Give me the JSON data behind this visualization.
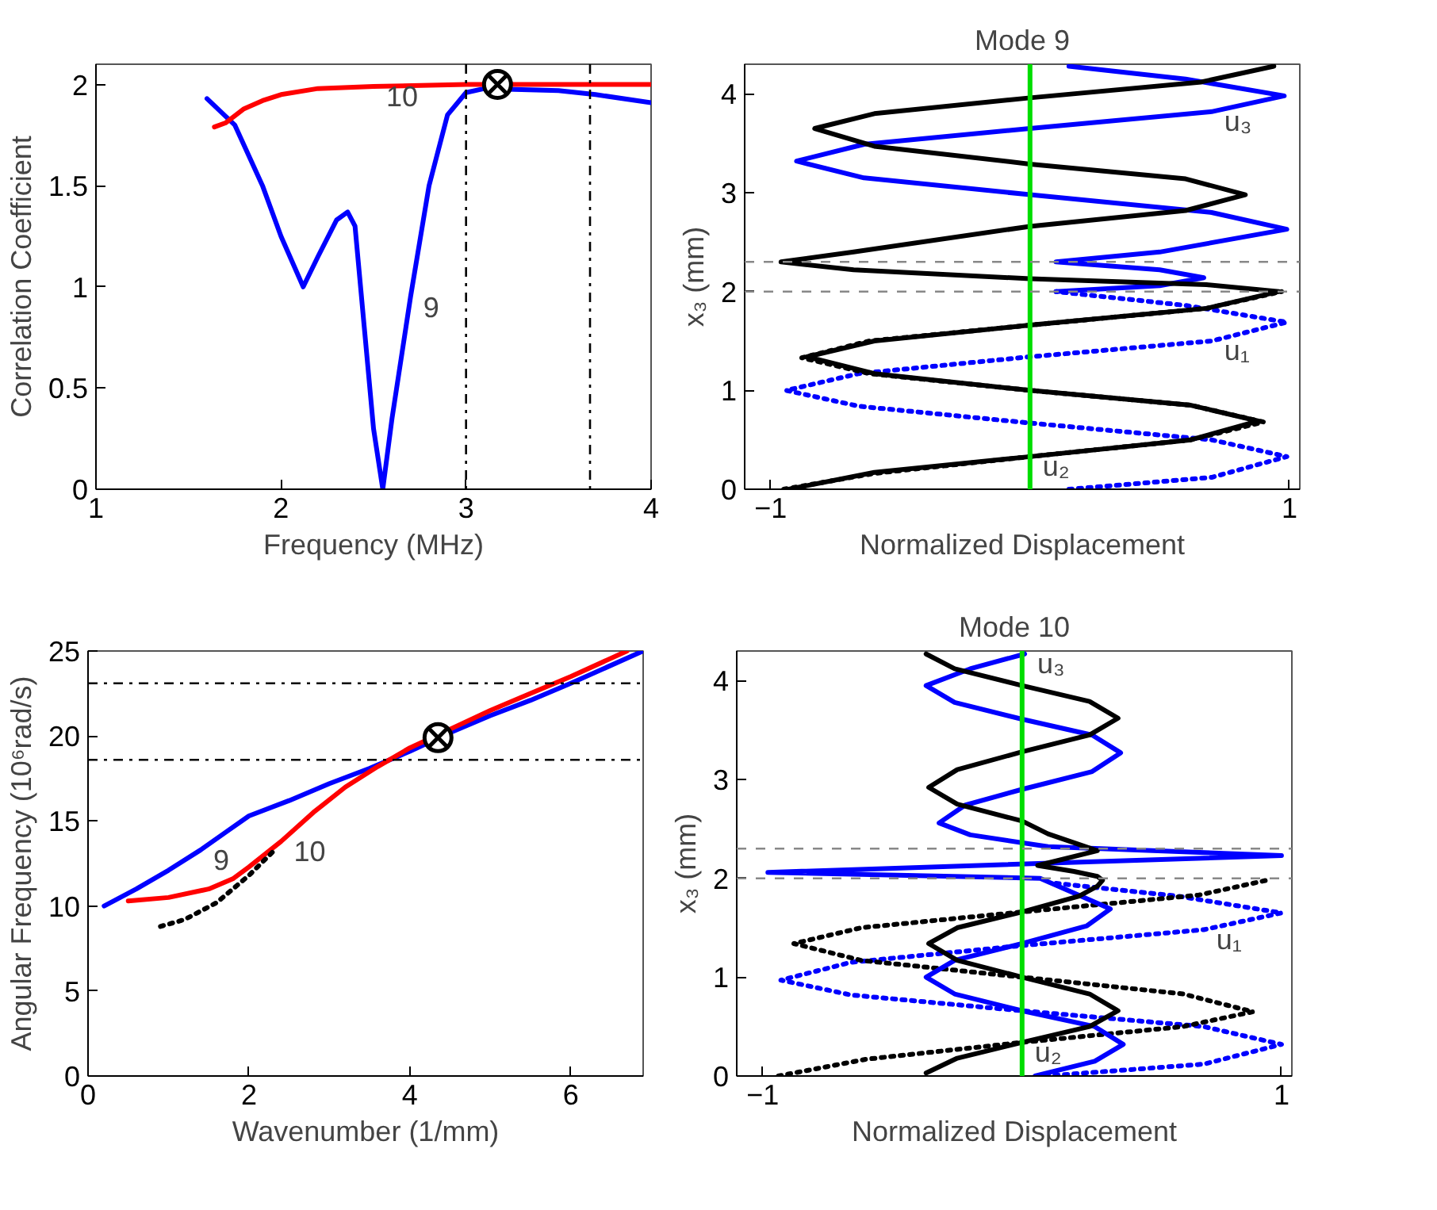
{
  "chart_data": [
    {
      "type": "line",
      "xlabel": "Frequency (MHz)",
      "ylabel": "Correlation Coefficient",
      "xlim": [
        1,
        4
      ],
      "ylim": [
        0,
        2.1
      ],
      "xticks": [
        1,
        2,
        3,
        4
      ],
      "yticks": [
        0,
        0.5,
        1,
        1.5,
        2
      ],
      "grid": false,
      "series": [
        {
          "color": "#0000ff",
          "x": [
            1.6,
            1.75,
            1.9,
            2.0,
            2.12,
            2.2,
            2.3,
            2.36,
            2.4,
            2.45,
            2.5,
            2.55,
            2.6,
            2.7,
            2.8,
            2.9,
            3.0,
            3.1,
            3.5,
            3.7,
            4.0
          ],
          "values": [
            1.93,
            1.8,
            1.5,
            1.25,
            1.0,
            1.15,
            1.33,
            1.37,
            1.3,
            0.8,
            0.3,
            0.0,
            0.35,
            0.95,
            1.5,
            1.85,
            1.96,
            1.98,
            1.97,
            1.95,
            1.91
          ]
        },
        {
          "color": "#ff0000",
          "x": [
            1.64,
            1.7,
            1.8,
            1.9,
            2.0,
            2.2,
            2.5,
            3.0,
            4.0
          ],
          "values": [
            1.79,
            1.81,
            1.88,
            1.92,
            1.95,
            1.98,
            1.99,
            2.0,
            2.0
          ]
        },
        {
          "type": "scatter",
          "marker": "cross",
          "color": "#000000",
          "x": [
            3.17
          ],
          "values": [
            2.0
          ]
        }
      ],
      "ref_lines": [
        {
          "axis": "x",
          "value": 3.0,
          "color": "#000000",
          "line_style": "dashdot"
        },
        {
          "axis": "x",
          "value": 3.67,
          "color": "#000000",
          "line_style": "dashdot"
        }
      ],
      "annotations": [
        {
          "text": "9",
          "x": 2.7,
          "y": 0.95
        },
        {
          "text": "10",
          "x": 2.5,
          "y": 1.99
        }
      ]
    },
    {
      "type": "line",
      "title": "Mode 9",
      "xlabel": "Normalized Displacement",
      "ylabel": "x₃ (mm)",
      "xlim": [
        -1.1,
        1.04
      ],
      "ylim": [
        0,
        4.3
      ],
      "xticks": [
        -1,
        1
      ],
      "yticks": [
        0,
        1,
        2,
        3,
        4
      ],
      "grid": false,
      "series": [
        {
          "color": "#0000ff",
          "line_style": "dotted",
          "x": [
            0.15,
            0.7,
            0.99,
            0.7,
            0.0,
            -0.66,
            -0.94,
            -0.66,
            0.0,
            0.7,
            0.99,
            0.6,
            0.1
          ],
          "values": [
            0.0,
            0.12,
            0.33,
            0.5,
            0.67,
            0.84,
            1.0,
            1.17,
            1.34,
            1.5,
            1.69,
            1.86,
            2.0
          ]
        },
        {
          "color": "#0000ff",
          "x": [
            0.1,
            0.5,
            0.67,
            0.5,
            0.1,
            0.5,
            0.99,
            0.7,
            0.0,
            -0.64,
            -0.9,
            -0.64,
            0.0,
            0.7,
            0.98,
            0.6,
            0.15
          ],
          "values": [
            2.0,
            2.06,
            2.14,
            2.22,
            2.3,
            2.4,
            2.63,
            2.8,
            2.98,
            3.15,
            3.32,
            3.49,
            3.65,
            3.82,
            3.98,
            4.15,
            4.28
          ]
        },
        {
          "color": "#000000",
          "line_style": "dotted",
          "x": [
            -0.95,
            -0.6,
            0.0,
            0.62,
            0.9,
            0.62,
            0.0,
            -0.62,
            -0.88,
            -0.62,
            0.0,
            0.68,
            0.97
          ],
          "values": [
            0.0,
            0.16,
            0.33,
            0.5,
            0.68,
            0.85,
            1.0,
            1.17,
            1.33,
            1.5,
            1.66,
            1.83,
            2.0
          ]
        },
        {
          "color": "#000000",
          "x": [
            -0.93,
            -0.6,
            0.0,
            0.62,
            0.88,
            0.62,
            0.0,
            -0.6,
            -0.86,
            -0.6,
            0.0,
            0.68,
            0.96,
            0.68,
            0.0,
            -0.68,
            -0.96,
            -0.68,
            0.0,
            0.6,
            0.83,
            0.6,
            0.0,
            -0.6,
            -0.83,
            -0.6,
            0.0,
            0.66,
            0.94
          ],
          "values": [
            0.0,
            0.17,
            0.33,
            0.5,
            0.69,
            0.85,
            1.0,
            1.17,
            1.34,
            1.5,
            1.66,
            1.83,
            2.0,
            2.07,
            2.13,
            2.22,
            2.3,
            2.4,
            2.66,
            2.82,
            2.98,
            3.14,
            3.29,
            3.47,
            3.65,
            3.8,
            3.96,
            4.12,
            4.28
          ]
        }
      ],
      "ref_lines": [
        {
          "axis": "x",
          "value": 0,
          "color": "#00dd00",
          "line_style": "solid"
        },
        {
          "axis": "y",
          "value": 2.0,
          "color": "#888888",
          "line_style": "dashed"
        },
        {
          "axis": "y",
          "value": 2.3,
          "color": "#888888",
          "line_style": "dashed"
        }
      ],
      "annotations": [
        {
          "text": "u₃",
          "x": 0.7,
          "y": 3.82
        },
        {
          "text": "u₁",
          "x": 0.7,
          "y": 1.5
        },
        {
          "text": "u₂",
          "x": 0.0,
          "y": 0.33
        }
      ]
    },
    {
      "type": "line",
      "xlabel": "Wavenumber (1/mm)",
      "ylabel": "Angular Frequency (10⁶rad/s)",
      "xlim": [
        0,
        6.9
      ],
      "ylim": [
        0,
        25
      ],
      "xticks": [
        0,
        2,
        4,
        6
      ],
      "yticks": [
        0,
        5,
        10,
        15,
        20,
        25
      ],
      "grid": false,
      "series": [
        {
          "color": "#0000ff",
          "x": [
            0.2,
            0.6,
            1.0,
            1.4,
            1.7,
            2.0,
            2.5,
            3.0,
            3.5,
            4.0,
            4.5,
            5.0,
            5.5,
            6.0,
            6.9
          ],
          "values": [
            10,
            11,
            12.1,
            13.3,
            14.3,
            15.3,
            16.2,
            17.2,
            18.1,
            19.1,
            20.2,
            21.2,
            22.1,
            23.1,
            25
          ]
        },
        {
          "color": "#ff0000",
          "x": [
            0.5,
            1.0,
            1.5,
            1.8,
            2.0,
            2.4,
            2.8,
            3.2,
            3.6,
            4.0,
            4.5,
            5.0,
            5.5,
            6.0,
            6.7
          ],
          "values": [
            10.3,
            10.5,
            11.0,
            11.6,
            12.3,
            13.8,
            15.5,
            17.0,
            18.2,
            19.3,
            20.4,
            21.5,
            22.5,
            23.5,
            25
          ]
        },
        {
          "color": "#000000",
          "line_style": "dotted",
          "x": [
            0.9,
            1.2,
            1.6,
            2.0,
            2.3
          ],
          "values": [
            8.8,
            9.2,
            10.2,
            11.8,
            13.2
          ]
        },
        {
          "type": "scatter",
          "marker": "cross",
          "color": "#000000",
          "x": [
            4.35
          ],
          "values": [
            19.9
          ]
        }
      ],
      "ref_lines": [
        {
          "axis": "y",
          "value": 23.1,
          "color": "#000000",
          "line_style": "dashdot"
        },
        {
          "axis": "y",
          "value": 18.6,
          "color": "#000000",
          "line_style": "dashdot"
        }
      ],
      "annotations": [
        {
          "text": "9",
          "x": 1.4,
          "y": 13.3
        },
        {
          "text": "10",
          "x": 2.4,
          "y": 13.8
        }
      ]
    },
    {
      "type": "line",
      "title": "Mode 10",
      "xlabel": "Normalized Displacement",
      "ylabel": "x₃ (mm)",
      "xlim": [
        -1.1,
        1.04
      ],
      "ylim": [
        0,
        4.3
      ],
      "xticks": [
        -1,
        1
      ],
      "yticks": [
        0,
        1,
        2,
        3,
        4
      ],
      "grid": false,
      "series": [
        {
          "color": "#0000ff",
          "line_style": "dotted",
          "x": [
            0.09,
            0.7,
            1.0,
            0.7,
            0.0,
            -0.66,
            -0.93,
            -0.66,
            0.0,
            0.7,
            1.0,
            0.6,
            0.13
          ],
          "values": [
            0.0,
            0.12,
            0.32,
            0.5,
            0.66,
            0.82,
            0.97,
            1.15,
            1.32,
            1.48,
            1.65,
            1.82,
            1.95
          ]
        },
        {
          "color": "#000000",
          "line_style": "dotted",
          "x": [
            -0.94,
            -0.6,
            0.0,
            0.62,
            0.89,
            0.62,
            0.0,
            -0.62,
            -0.88,
            -0.62,
            0.0,
            0.68,
            0.96
          ],
          "values": [
            0.0,
            0.17,
            0.34,
            0.5,
            0.65,
            0.83,
            1.0,
            1.17,
            1.34,
            1.5,
            1.66,
            1.83,
            1.99
          ]
        },
        {
          "color": "#0000ff",
          "x": [
            0.05,
            0.28,
            0.39,
            0.28,
            0.0,
            -0.26,
            -0.37,
            -0.26,
            0.0,
            0.25,
            0.34,
            0.07,
            -0.98,
            1.0,
            0.1,
            -0.2,
            -0.32,
            -0.22,
            0.0,
            0.27,
            0.38,
            0.27,
            0.0,
            -0.26,
            -0.37,
            -0.2,
            0.01
          ],
          "values": [
            0.0,
            0.15,
            0.32,
            0.5,
            0.66,
            0.83,
            1.0,
            1.17,
            1.34,
            1.52,
            1.69,
            2.0,
            2.06,
            2.23,
            2.32,
            2.44,
            2.56,
            2.74,
            2.9,
            3.08,
            3.27,
            3.45,
            3.61,
            3.78,
            3.95,
            4.12,
            4.27
          ]
        },
        {
          "color": "#000000",
          "x": [
            -0.37,
            -0.25,
            0.0,
            0.26,
            0.37,
            0.26,
            0.0,
            -0.25,
            -0.36,
            -0.25,
            0.0,
            0.22,
            0.29,
            0.31,
            0.29,
            0.2,
            0.06,
            0.29,
            0.1,
            0.0,
            -0.25,
            -0.36,
            -0.25,
            0.0,
            0.26,
            0.37,
            0.26,
            0.0,
            -0.26,
            -0.37
          ],
          "values": [
            0.03,
            0.18,
            0.34,
            0.5,
            0.66,
            0.83,
            1.0,
            1.17,
            1.34,
            1.5,
            1.66,
            1.82,
            1.92,
            1.98,
            2.02,
            2.07,
            2.13,
            2.28,
            2.45,
            2.58,
            2.75,
            2.92,
            3.1,
            3.28,
            3.45,
            3.62,
            3.79,
            3.95,
            4.12,
            4.27
          ]
        }
      ],
      "ref_lines": [
        {
          "axis": "x",
          "value": 0,
          "color": "#00dd00",
          "line_style": "solid"
        },
        {
          "axis": "y",
          "value": 2.0,
          "color": "#888888",
          "line_style": "dashed"
        },
        {
          "axis": "y",
          "value": 2.3,
          "color": "#888888",
          "line_style": "dashed"
        }
      ],
      "annotations": [
        {
          "text": "u₃",
          "x": 0.01,
          "y": 4.27
        },
        {
          "text": "u₁",
          "x": 0.7,
          "y": 1.48
        },
        {
          "text": "u₂",
          "x": 0.0,
          "y": 0.34
        }
      ]
    }
  ]
}
